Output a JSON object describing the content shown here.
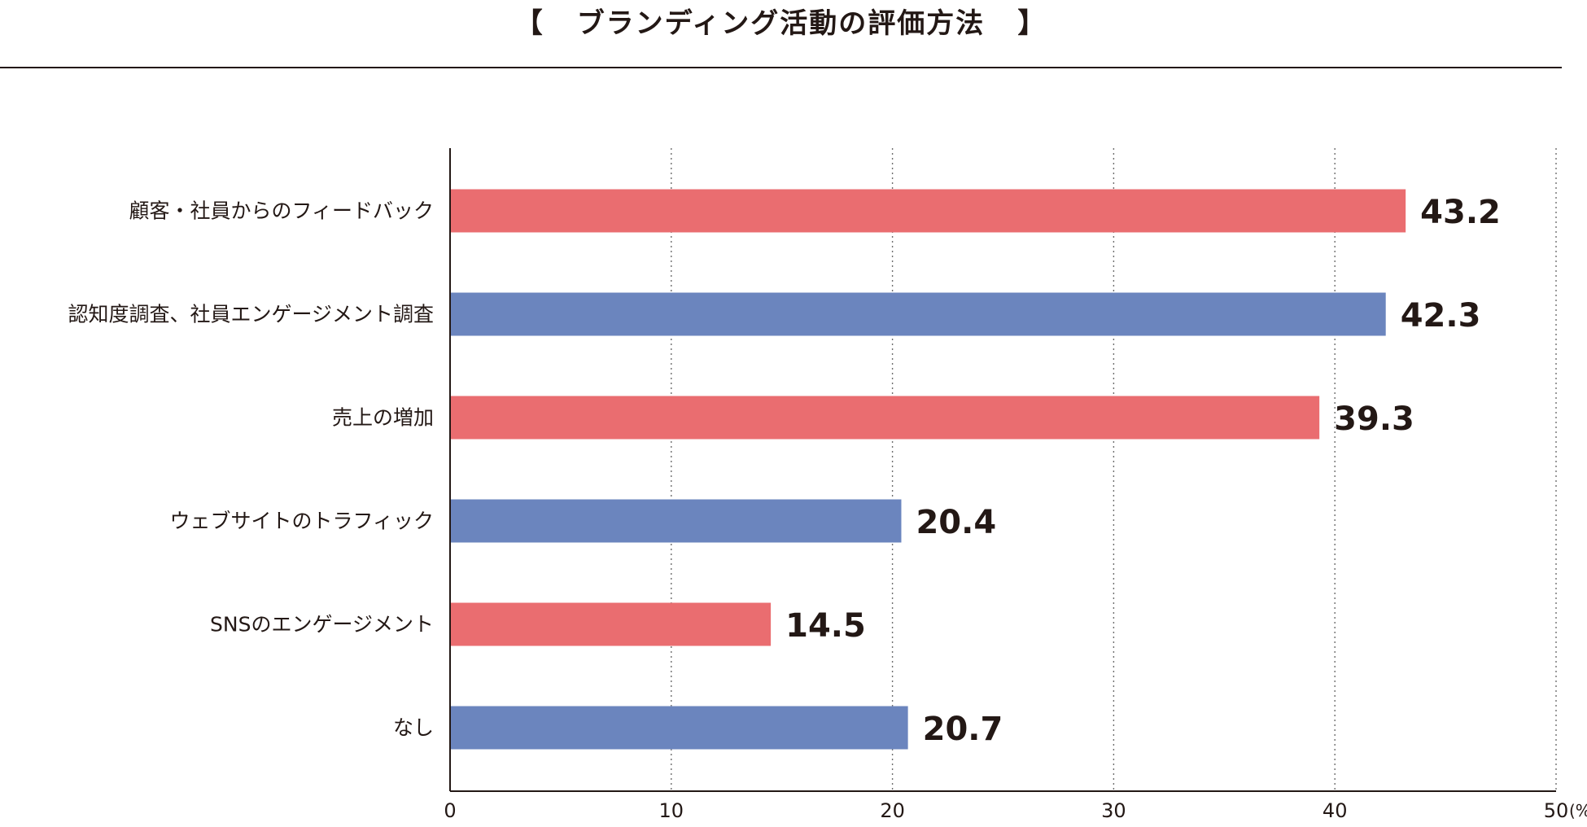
{
  "colors": {
    "red": "#EA6D70",
    "blue": "#6B85BE",
    "text": "#231815",
    "grid": "#6E6E6E"
  },
  "chart_data": {
    "type": "bar",
    "orientation": "horizontal",
    "title": "ブランディング活動の評価方法",
    "title_open": "【",
    "title_close": "】",
    "categories": [
      "顧客・社員からのフィードバック",
      "認知度調査、社員エンゲージメント調査",
      "売上の増加",
      "ウェブサイトのトラフィック",
      "SNSのエンゲージメント",
      "なし"
    ],
    "values": [
      43.2,
      42.3,
      39.3,
      20.4,
      14.5,
      20.7
    ],
    "value_labels": [
      "43.2",
      "42.3",
      "39.3",
      "20.4",
      "14.5",
      "20.7"
    ],
    "bar_colors": [
      "#EA6D70",
      "#6B85BE",
      "#EA6D70",
      "#6B85BE",
      "#EA6D70",
      "#6B85BE"
    ],
    "xlim": [
      0,
      50
    ],
    "xticks": [
      0,
      10,
      20,
      30,
      40,
      50
    ],
    "xtick_labels": [
      "0",
      "10",
      "20",
      "30",
      "40",
      "50"
    ],
    "unit": "(%)",
    "grid": "vertical-dotted"
  }
}
